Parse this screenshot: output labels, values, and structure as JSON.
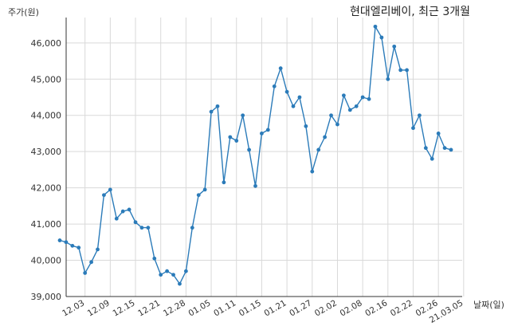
{
  "chart_data": {
    "type": "line",
    "title": "현대엘리베이, 최근 3개월",
    "ylabel": "주가(원)",
    "xlabel": "날짜(일)",
    "ylim": [
      39000,
      46700
    ],
    "yticks": [
      39000,
      40000,
      41000,
      42000,
      43000,
      44000,
      45000,
      46000
    ],
    "ytick_labels": [
      "39,000",
      "40,000",
      "41,000",
      "42,000",
      "43,000",
      "44,000",
      "45,000",
      "46,000"
    ],
    "xticks": [
      {
        "index": 4,
        "label": "12.03"
      },
      {
        "index": 8,
        "label": "12.09"
      },
      {
        "index": 12,
        "label": "12.15"
      },
      {
        "index": 16,
        "label": "12.21"
      },
      {
        "index": 20,
        "label": "12.28"
      },
      {
        "index": 24,
        "label": "01.05"
      },
      {
        "index": 28,
        "label": "01.11"
      },
      {
        "index": 32,
        "label": "01.15"
      },
      {
        "index": 36,
        "label": "01.21"
      },
      {
        "index": 40,
        "label": "01.27"
      },
      {
        "index": 44,
        "label": "02.02"
      },
      {
        "index": 48,
        "label": "02.08"
      },
      {
        "index": 52,
        "label": "02.16"
      },
      {
        "index": 56,
        "label": "02.22"
      },
      {
        "index": 60,
        "label": "02.26"
      },
      {
        "index": 64,
        "label": "21.03.05"
      }
    ],
    "grid": true,
    "line_color": "#2b7bb9",
    "series": [
      {
        "values": [
          40550,
          40500,
          40400,
          40350,
          39650,
          39950,
          40300,
          41800,
          41950,
          41150,
          41350,
          41400,
          41050,
          40900,
          40900,
          40050,
          39600,
          39700,
          39600,
          39350,
          39700,
          40900,
          41800,
          41950,
          44100,
          44250,
          42150,
          43400,
          43300,
          44000,
          43050,
          42050,
          43500,
          43600,
          44800,
          45300,
          44650,
          44250,
          44500,
          43700,
          42450,
          43050,
          43400,
          44000,
          43750,
          44550,
          44150,
          44250,
          44500,
          44450,
          46450,
          46150,
          45000,
          45900,
          45250,
          45250,
          43650,
          44000,
          43100,
          42800,
          43500,
          43100,
          43050
        ]
      }
    ]
  }
}
